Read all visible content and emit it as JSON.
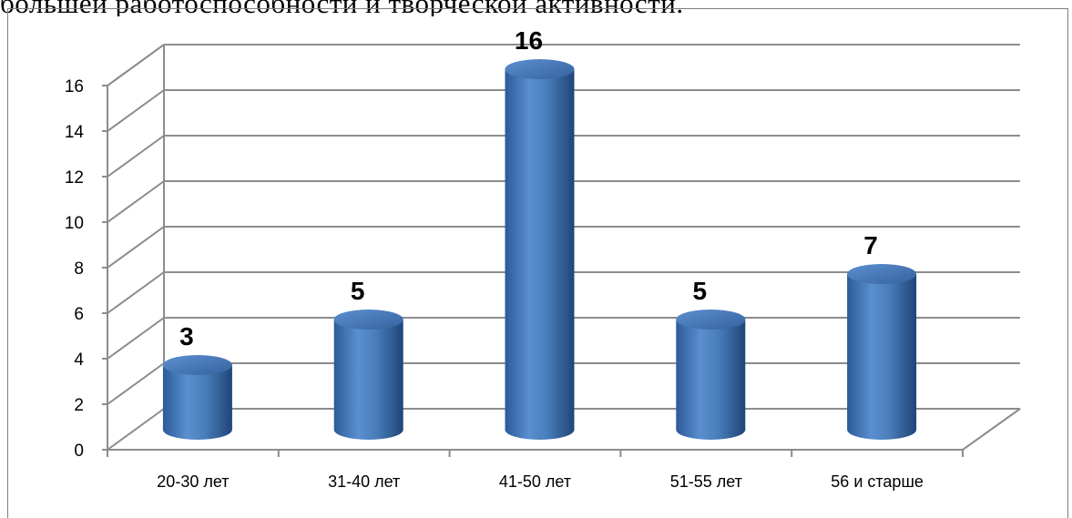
{
  "header_text": "большей работоспособности и творческой активности.",
  "chart_data": {
    "type": "bar",
    "categories": [
      "20-30 лет",
      "31-40 лет",
      "41-50 лет",
      "51-55 лет",
      "56 и старше"
    ],
    "values": [
      3,
      5,
      16,
      5,
      7
    ],
    "ylim": [
      0,
      16
    ],
    "y_ticks": [
      "0",
      "2",
      "4",
      "6",
      "8",
      "10",
      "12",
      "14",
      "16"
    ],
    "grid": true,
    "legend": "none",
    "bar_color": "#4a7ebb",
    "style": "3d-cylinder"
  }
}
